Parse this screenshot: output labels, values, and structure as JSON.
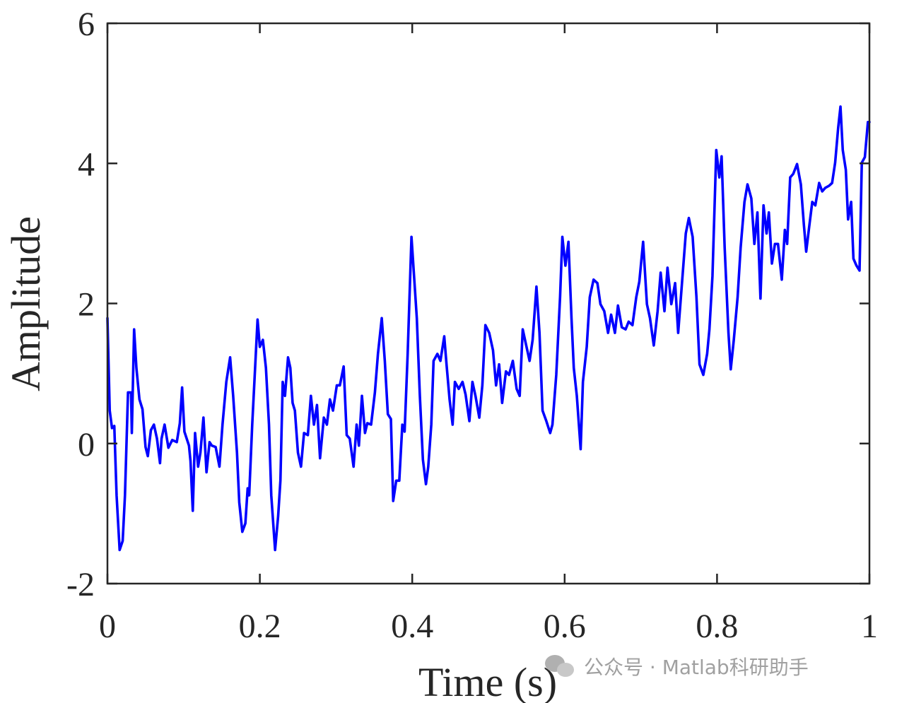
{
  "chart_data": {
    "type": "line",
    "xlabel": "Time (s)",
    "ylabel": "Amplitude",
    "watermark": "公众号 · Matlab科研助手",
    "xlim": [
      0,
      1
    ],
    "ylim": [
      -2,
      6
    ],
    "xticks": [
      0,
      0.2,
      0.4,
      0.6,
      0.8,
      1
    ],
    "yticks": [
      -2,
      0,
      2,
      4,
      6
    ],
    "box": true,
    "grid": false,
    "x": [
      0,
      0.003,
      0.006,
      0.009,
      0.012,
      0.016,
      0.02,
      0.023,
      0.027,
      0.031,
      0.032,
      0.035,
      0.038,
      0.042,
      0.046,
      0.05,
      0.053,
      0.057,
      0.061,
      0.065,
      0.069,
      0.071,
      0.075,
      0.08,
      0.085,
      0.091,
      0.095,
      0.098,
      0.101,
      0.107,
      0.109,
      0.112,
      0.115,
      0.119,
      0.122,
      0.126,
      0.13,
      0.134,
      0.137,
      0.142,
      0.147,
      0.151,
      0.156,
      0.161,
      0.165,
      0.17,
      0.173,
      0.177,
      0.181,
      0.184,
      0.186,
      0.19,
      0.197,
      0.2,
      0.204,
      0.208,
      0.212,
      0.215,
      0.22,
      0.224,
      0.227,
      0.23,
      0.233,
      0.237,
      0.24,
      0.243,
      0.246,
      0.25,
      0.254,
      0.258,
      0.263,
      0.267,
      0.271,
      0.275,
      0.279,
      0.284,
      0.288,
      0.292,
      0.296,
      0.301,
      0.305,
      0.31,
      0.314,
      0.318,
      0.323,
      0.327,
      0.33,
      0.334,
      0.338,
      0.341,
      0.346,
      0.351,
      0.355,
      0.36,
      0.364,
      0.368,
      0.372,
      0.375,
      0.379,
      0.383,
      0.387,
      0.39,
      0.394,
      0.399,
      0.403,
      0.406,
      0.41,
      0.414,
      0.418,
      0.421,
      0.425,
      0.428,
      0.433,
      0.437,
      0.442,
      0.445,
      0.449,
      0.453,
      0.456,
      0.461,
      0.466,
      0.47,
      0.475,
      0.479,
      0.483,
      0.488,
      0.492,
      0.496,
      0.501,
      0.506,
      0.51,
      0.514,
      0.518,
      0.523,
      0.527,
      0.532,
      0.537,
      0.541,
      0.545,
      0.55,
      0.554,
      0.558,
      0.563,
      0.567,
      0.571,
      0.576,
      0.581,
      0.584,
      0.589,
      0.594,
      0.597,
      0.601,
      0.605,
      0.609,
      0.612,
      0.616,
      0.621,
      0.624,
      0.629,
      0.633,
      0.638,
      0.643,
      0.647,
      0.652,
      0.657,
      0.661,
      0.666,
      0.67,
      0.675,
      0.68,
      0.684,
      0.689,
      0.694,
      0.698,
      0.703,
      0.708,
      0.712,
      0.717,
      0.722,
      0.726,
      0.731,
      0.735,
      0.74,
      0.745,
      0.749,
      0.754,
      0.759,
      0.763,
      0.768,
      0.773,
      0.777,
      0.782,
      0.787,
      0.79,
      0.794,
      0.799,
      0.803,
      0.806,
      0.81,
      0.815,
      0.818,
      0.822,
      0.827,
      0.831,
      0.836,
      0.84,
      0.845,
      0.849,
      0.853,
      0.857,
      0.861,
      0.865,
      0.868,
      0.872,
      0.876,
      0.88,
      0.885,
      0.889,
      0.892,
      0.896,
      0.9,
      0.905,
      0.91,
      0.914,
      0.917,
      0.921,
      0.925,
      0.929,
      0.934,
      0.938,
      0.942,
      0.947,
      0.951,
      0.955,
      0.959,
      0.962,
      0.965,
      0.969,
      0.972,
      0.976,
      0.979,
      0.983,
      0.987,
      0.99,
      0.994,
      0.998,
      1
    ],
    "series": [
      {
        "color": "#0000ff",
        "values": [
          1.79,
          0.47,
          0.22,
          0.25,
          -0.74,
          -1.52,
          -1.39,
          -0.74,
          0.73,
          0.73,
          0.15,
          1.63,
          1.08,
          0.63,
          0.49,
          -0.05,
          -0.18,
          0.19,
          0.27,
          0.07,
          -0.28,
          0.07,
          0.27,
          -0.06,
          0.05,
          0.02,
          0.29,
          0.8,
          0.17,
          -0.03,
          -0.25,
          -0.96,
          0.15,
          -0.33,
          -0.13,
          0.37,
          -0.41,
          0.02,
          -0.03,
          -0.05,
          -0.33,
          0.27,
          0.88,
          1.23,
          0.68,
          -0.13,
          -0.84,
          -1.26,
          -1.14,
          -0.64,
          -0.74,
          0.27,
          1.77,
          1.38,
          1.48,
          1.08,
          0.27,
          -0.74,
          -1.52,
          -1.04,
          -0.53,
          0.88,
          0.68,
          1.23,
          1.08,
          0.58,
          0.47,
          -0.13,
          -0.33,
          0.15,
          0.12,
          0.68,
          0.27,
          0.55,
          -0.21,
          0.37,
          0.27,
          0.63,
          0.47,
          0.83,
          0.83,
          1.1,
          0.12,
          0.07,
          -0.33,
          0.27,
          -0.03,
          0.68,
          0.15,
          0.29,
          0.27,
          0.73,
          1.28,
          1.79,
          1.18,
          0.42,
          0.35,
          -0.82,
          -0.53,
          -0.53,
          0.27,
          0.17,
          1.28,
          2.95,
          2.29,
          1.79,
          0.68,
          -0.23,
          -0.58,
          -0.33,
          0.27,
          1.18,
          1.28,
          1.18,
          1.53,
          1.13,
          0.63,
          0.27,
          0.88,
          0.78,
          0.88,
          0.7,
          0.32,
          0.88,
          0.68,
          0.37,
          0.83,
          1.69,
          1.58,
          1.33,
          0.83,
          1.13,
          0.58,
          1.03,
          0.98,
          1.18,
          0.78,
          0.68,
          1.63,
          1.38,
          1.18,
          1.48,
          2.24,
          1.58,
          0.47,
          0.32,
          0.15,
          0.27,
          0.98,
          2.09,
          2.95,
          2.54,
          2.88,
          1.79,
          1.08,
          0.68,
          -0.08,
          0.88,
          1.38,
          2.09,
          2.34,
          2.29,
          1.99,
          1.89,
          1.58,
          1.84,
          1.58,
          1.97,
          1.66,
          1.63,
          1.74,
          1.69,
          2.09,
          2.31,
          2.88,
          1.99,
          1.79,
          1.4,
          1.89,
          2.44,
          1.89,
          2.51,
          1.99,
          2.29,
          1.58,
          2.29,
          3.0,
          3.22,
          2.95,
          2.09,
          1.13,
          0.98,
          1.28,
          1.63,
          2.39,
          4.19,
          3.8,
          4.1,
          2.8,
          1.58,
          1.06,
          1.48,
          2.09,
          2.8,
          3.45,
          3.7,
          3.5,
          2.85,
          3.3,
          2.07,
          3.4,
          3.0,
          3.3,
          2.57,
          2.85,
          2.85,
          2.34,
          3.05,
          2.85,
          3.8,
          3.85,
          3.99,
          3.7,
          3.12,
          2.74,
          3.1,
          3.45,
          3.4,
          3.72,
          3.6,
          3.65,
          3.68,
          3.72,
          4.01,
          4.51,
          4.81,
          4.19,
          3.91,
          3.2,
          3.45,
          2.64,
          2.54,
          2.47,
          4.01,
          4.09,
          4.59,
          4.59
        ]
      }
    ]
  }
}
